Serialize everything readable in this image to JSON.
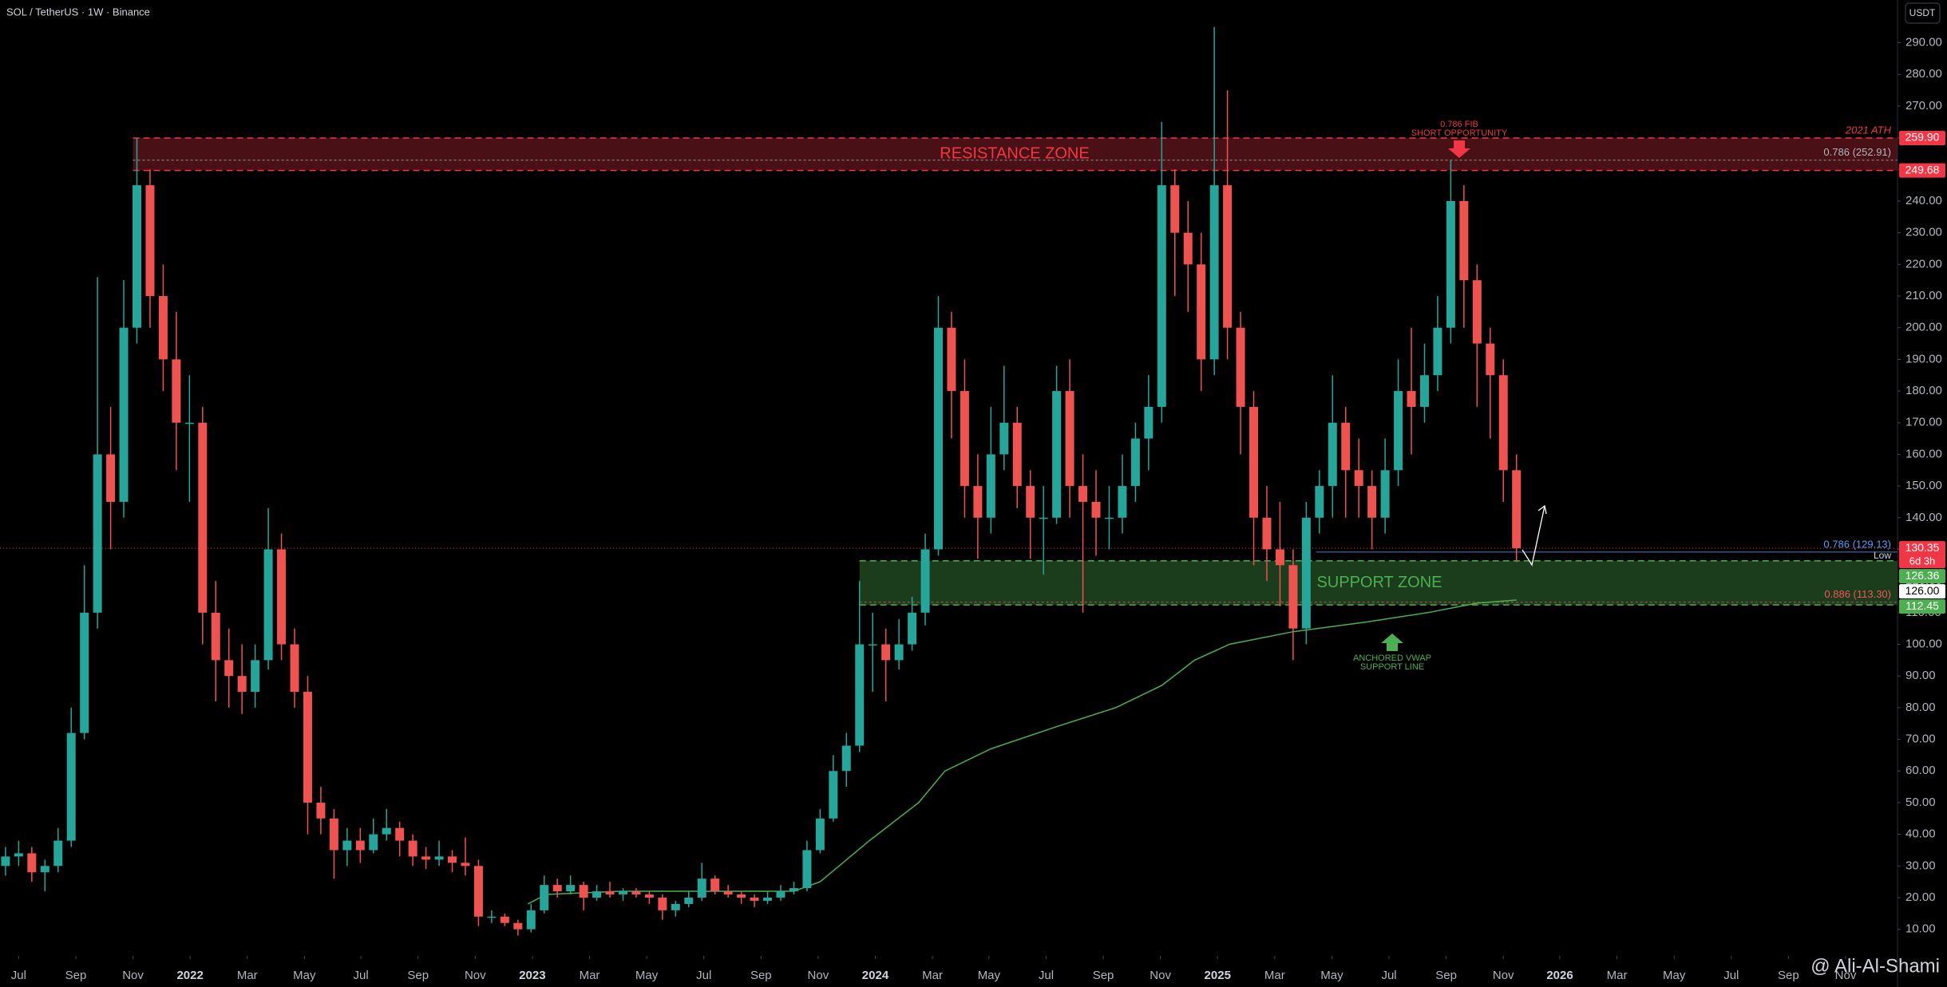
{
  "header": {
    "symbol": "SOL / TetherUS · 1W · Binance",
    "currency_button": "USDT",
    "watermark": "@ Ali-Al-Shami"
  },
  "chart_data": {
    "type": "candlestick",
    "up_color": "#26a69a",
    "down_color": "#ef5350",
    "grid": false,
    "xlim": [
      -2.84,
      286
    ],
    "ylim": [
      1.6,
      303.5
    ],
    "xticks": [
      {
        "value": 0,
        "label": "Jul"
      },
      {
        "value": 8.7,
        "label": "Sep"
      },
      {
        "value": 17.4,
        "label": "Nov"
      },
      {
        "value": 26.1,
        "label": "2022"
      },
      {
        "value": 34.8,
        "label": "Mar"
      },
      {
        "value": 43.5,
        "label": "May"
      },
      {
        "value": 52.1,
        "label": "Jul"
      },
      {
        "value": 60.8,
        "label": "Sep"
      },
      {
        "value": 69.5,
        "label": "Nov"
      },
      {
        "value": 78.2,
        "label": "2023"
      },
      {
        "value": 86.9,
        "label": "Mar"
      },
      {
        "value": 95.6,
        "label": "May"
      },
      {
        "value": 104.3,
        "label": "Jul"
      },
      {
        "value": 113,
        "label": "Sep"
      },
      {
        "value": 121.7,
        "label": "Nov"
      },
      {
        "value": 130.4,
        "label": "2024"
      },
      {
        "value": 139.1,
        "label": "Mar"
      },
      {
        "value": 147.7,
        "label": "May"
      },
      {
        "value": 156.4,
        "label": "Jul"
      },
      {
        "value": 165.1,
        "label": "Sep"
      },
      {
        "value": 173.8,
        "label": "Nov"
      },
      {
        "value": 182.5,
        "label": "2025"
      },
      {
        "value": 191.2,
        "label": "Mar"
      },
      {
        "value": 199.9,
        "label": "May"
      },
      {
        "value": 208.6,
        "label": "Jul"
      },
      {
        "value": 217.3,
        "label": "Sep"
      },
      {
        "value": 226,
        "label": "Nov"
      },
      {
        "value": 234.6,
        "label": "2026"
      },
      {
        "value": 243.3,
        "label": "Mar"
      },
      {
        "value": 252,
        "label": "May"
      },
      {
        "value": 260.7,
        "label": "Jul"
      },
      {
        "value": 269.4,
        "label": "Sep"
      },
      {
        "value": 278.1,
        "label": "Nov"
      }
    ],
    "yticks": [
      {
        "value": 10,
        "label": "10.00"
      },
      {
        "value": 20,
        "label": "20.00"
      },
      {
        "value": 30,
        "label": "30.00"
      },
      {
        "value": 40,
        "label": "40.00"
      },
      {
        "value": 50,
        "label": "50.00"
      },
      {
        "value": 60,
        "label": "60.00"
      },
      {
        "value": 70,
        "label": "70.00"
      },
      {
        "value": 80,
        "label": "80.00"
      },
      {
        "value": 90,
        "label": "90.00"
      },
      {
        "value": 100,
        "label": "100.00"
      },
      {
        "value": 110,
        "label": "110.00"
      },
      {
        "value": 120,
        "label": "120.00"
      },
      {
        "value": 130,
        "label": "130.00"
      },
      {
        "value": 140,
        "label": "140.00"
      },
      {
        "value": 150,
        "label": "150.00"
      },
      {
        "value": 160,
        "label": "160.00"
      },
      {
        "value": 170,
        "label": "170.00"
      },
      {
        "value": 180,
        "label": "180.00"
      },
      {
        "value": 190,
        "label": "190.00"
      },
      {
        "value": 200,
        "label": "200.00"
      },
      {
        "value": 210,
        "label": "210.00"
      },
      {
        "value": 220,
        "label": "220.00"
      },
      {
        "value": 230,
        "label": "230.00"
      },
      {
        "value": 240,
        "label": "240.00"
      },
      {
        "value": 250,
        "label": "250.00"
      },
      {
        "value": 260,
        "label": "260.00"
      },
      {
        "value": 270,
        "label": "270.00"
      },
      {
        "value": 280,
        "label": "280.00"
      },
      {
        "value": 290,
        "label": "290.00"
      }
    ],
    "x": [
      -2,
      0,
      2,
      4,
      6,
      8,
      10,
      12,
      14,
      16,
      18,
      20,
      22,
      24,
      26,
      28,
      30,
      32,
      34,
      36,
      38,
      40,
      42,
      44,
      46,
      48,
      50,
      52,
      54,
      56,
      58,
      60,
      62,
      64,
      66,
      68,
      70,
      72,
      74,
      76,
      78,
      80,
      82,
      84,
      86,
      88,
      90,
      92,
      94,
      96,
      98,
      100,
      102,
      104,
      106,
      108,
      110,
      112,
      114,
      116,
      118,
      120,
      122,
      124,
      126,
      128,
      130,
      132,
      134,
      136,
      138,
      140,
      142,
      144,
      146,
      148,
      150,
      152,
      154,
      156,
      158,
      160,
      162,
      164,
      166,
      168,
      170,
      172,
      174,
      176,
      178,
      180,
      182,
      184,
      186,
      188,
      190,
      192,
      194,
      196,
      198,
      200,
      202,
      204,
      206,
      208,
      210,
      212,
      214,
      216,
      218,
      220,
      222,
      224,
      226,
      228
    ],
    "open": [
      30,
      33,
      34,
      28,
      30,
      38,
      72,
      110,
      160,
      145,
      200,
      245,
      210,
      190,
      170,
      170,
      110,
      95,
      90,
      85,
      95,
      130,
      100,
      85,
      50,
      45,
      35,
      38,
      35,
      40,
      42,
      38,
      33,
      32,
      33,
      31,
      30,
      14,
      14,
      12,
      10,
      16,
      24,
      22,
      24,
      20,
      22,
      21,
      22,
      21,
      20,
      16,
      18,
      20,
      26,
      22,
      21,
      20,
      19,
      20,
      22,
      23,
      35,
      45,
      60,
      68,
      100,
      100,
      95,
      100,
      110,
      130,
      200,
      180,
      150,
      140,
      160,
      170,
      150,
      140,
      140,
      180,
      150,
      145,
      140,
      140,
      150,
      165,
      175,
      245,
      230,
      220,
      190,
      245,
      200,
      175,
      140,
      130,
      125,
      105,
      140,
      150,
      170,
      155,
      150,
      140,
      155,
      180,
      175,
      185,
      200,
      240,
      215,
      195,
      185,
      155
    ],
    "high": [
      36,
      38,
      36,
      32,
      42,
      80,
      125,
      216,
      175,
      215,
      259.9,
      250,
      220,
      205,
      185,
      175,
      120,
      105,
      100,
      100,
      143,
      135,
      105,
      90,
      55,
      48,
      42,
      42,
      45,
      48,
      44,
      40,
      36,
      38,
      35,
      39,
      32,
      16,
      15,
      13,
      18,
      27,
      26,
      27,
      25,
      24,
      25,
      23,
      23,
      22,
      21,
      19,
      22,
      31,
      27,
      24,
      22,
      21,
      22,
      24,
      25,
      38,
      48,
      65,
      72,
      120,
      110,
      105,
      108,
      115,
      135,
      210,
      205,
      190,
      160,
      175,
      188,
      175,
      155,
      150,
      188,
      190,
      160,
      155,
      150,
      160,
      170,
      185,
      265,
      250,
      240,
      230,
      295,
      275,
      205,
      180,
      150,
      145,
      130,
      145,
      155,
      185,
      175,
      165,
      155,
      165,
      190,
      200,
      195,
      210,
      253,
      245,
      220,
      200,
      190,
      160
    ],
    "low": [
      27,
      30,
      25,
      22,
      28,
      36,
      70,
      105,
      130,
      140,
      195,
      200,
      180,
      155,
      145,
      100,
      82,
      80,
      78,
      80,
      92,
      95,
      80,
      40,
      40,
      26,
      30,
      31,
      34,
      38,
      33,
      30,
      29,
      30,
      28,
      27,
      11,
      12,
      11,
      8,
      9,
      15,
      20,
      21,
      16,
      19,
      20,
      19,
      20,
      18,
      13,
      14,
      17,
      19,
      21,
      20,
      18,
      17,
      18,
      19,
      21,
      22,
      34,
      44,
      55,
      66,
      85,
      82,
      92,
      98,
      106,
      128,
      165,
      140,
      127,
      135,
      155,
      143,
      127,
      122,
      138,
      140,
      110,
      128,
      130,
      135,
      145,
      155,
      170,
      210,
      205,
      180,
      185,
      190,
      160,
      125,
      120,
      112,
      95,
      100,
      135,
      140,
      140,
      140,
      130,
      135,
      150,
      160,
      170,
      180,
      195,
      200,
      175,
      165,
      145,
      126
    ],
    "close": [
      33,
      34,
      28,
      30,
      38,
      72,
      110,
      160,
      145,
      200,
      245,
      210,
      190,
      170,
      170,
      110,
      95,
      90,
      85,
      95,
      130,
      100,
      85,
      50,
      45,
      35,
      38,
      35,
      40,
      42,
      38,
      33,
      32,
      33,
      31,
      30,
      14,
      14,
      12,
      10,
      16,
      24,
      22,
      24,
      20,
      22,
      21,
      22,
      21,
      20,
      16,
      18,
      20,
      26,
      22,
      21,
      20,
      19,
      20,
      22,
      23,
      35,
      45,
      60,
      68,
      100,
      100,
      95,
      100,
      110,
      130,
      200,
      180,
      150,
      140,
      160,
      170,
      150,
      140,
      140,
      180,
      150,
      145,
      140,
      140,
      150,
      165,
      175,
      245,
      230,
      220,
      190,
      245,
      200,
      175,
      140,
      130,
      125,
      105,
      140,
      150,
      170,
      155,
      150,
      140,
      155,
      180,
      175,
      185,
      200,
      240,
      215,
      195,
      185,
      155,
      130.35
    ],
    "lines": [
      {
        "color": "#4caf50",
        "x": [
          77.5,
          80.3,
          91.7,
          110.6,
          118,
          122,
          129.5,
          137,
          141,
          148,
          158,
          167,
          174,
          179,
          184.3,
          194,
          205,
          214.5,
          222,
          228
        ],
        "values": [
          18,
          21,
          22,
          22,
          22,
          25,
          38,
          50,
          60,
          67,
          74,
          80,
          87,
          95,
          100,
          104,
          107,
          110,
          113,
          114
        ]
      }
    ],
    "zones": [
      {
        "name": "RESISTANCE ZONE",
        "low": 249.68,
        "high": 259.9,
        "x_start": 17.4,
        "color": "#f23645"
      },
      {
        "name": "SUPPORT ZONE",
        "low": 112.45,
        "high": 126.36,
        "x_start": 128,
        "color": "#4caf50"
      }
    ],
    "fib_levels": [
      {
        "label": "0.786 (252.91)",
        "value": 252.91,
        "x_start": 17.4,
        "color": "#b2b5be"
      },
      {
        "label": "0.786 (129.13)",
        "value": 129.13,
        "x_start": 197.5,
        "color": "#5b9cf6"
      },
      {
        "label": "0.886 (113.30)",
        "value": 113.3,
        "x_start": 128,
        "color": "#f7525f"
      }
    ],
    "annotations": [
      "0.786 FIB",
      "SHORT OPPORTUNITY",
      "2021 ATH",
      "Low",
      "ANCHORED VWAP",
      "SUPPORT LINE"
    ],
    "price_labels": [
      {
        "value": 259.9,
        "label": "259.90",
        "color": "#f23645"
      },
      {
        "value": 249.68,
        "label": "249.68",
        "color": "#f23645"
      },
      {
        "value": 130.35,
        "label": "130.35",
        "color": "#f23645"
      },
      {
        "value": 126.36,
        "label": "126.36",
        "color": "#4caf50"
      },
      {
        "value": 126,
        "label": "126.00",
        "color": "#ffffff"
      },
      {
        "value": 112.45,
        "label": "112.45",
        "color": "#4caf50"
      }
    ],
    "countdown": "6d 3h"
  }
}
